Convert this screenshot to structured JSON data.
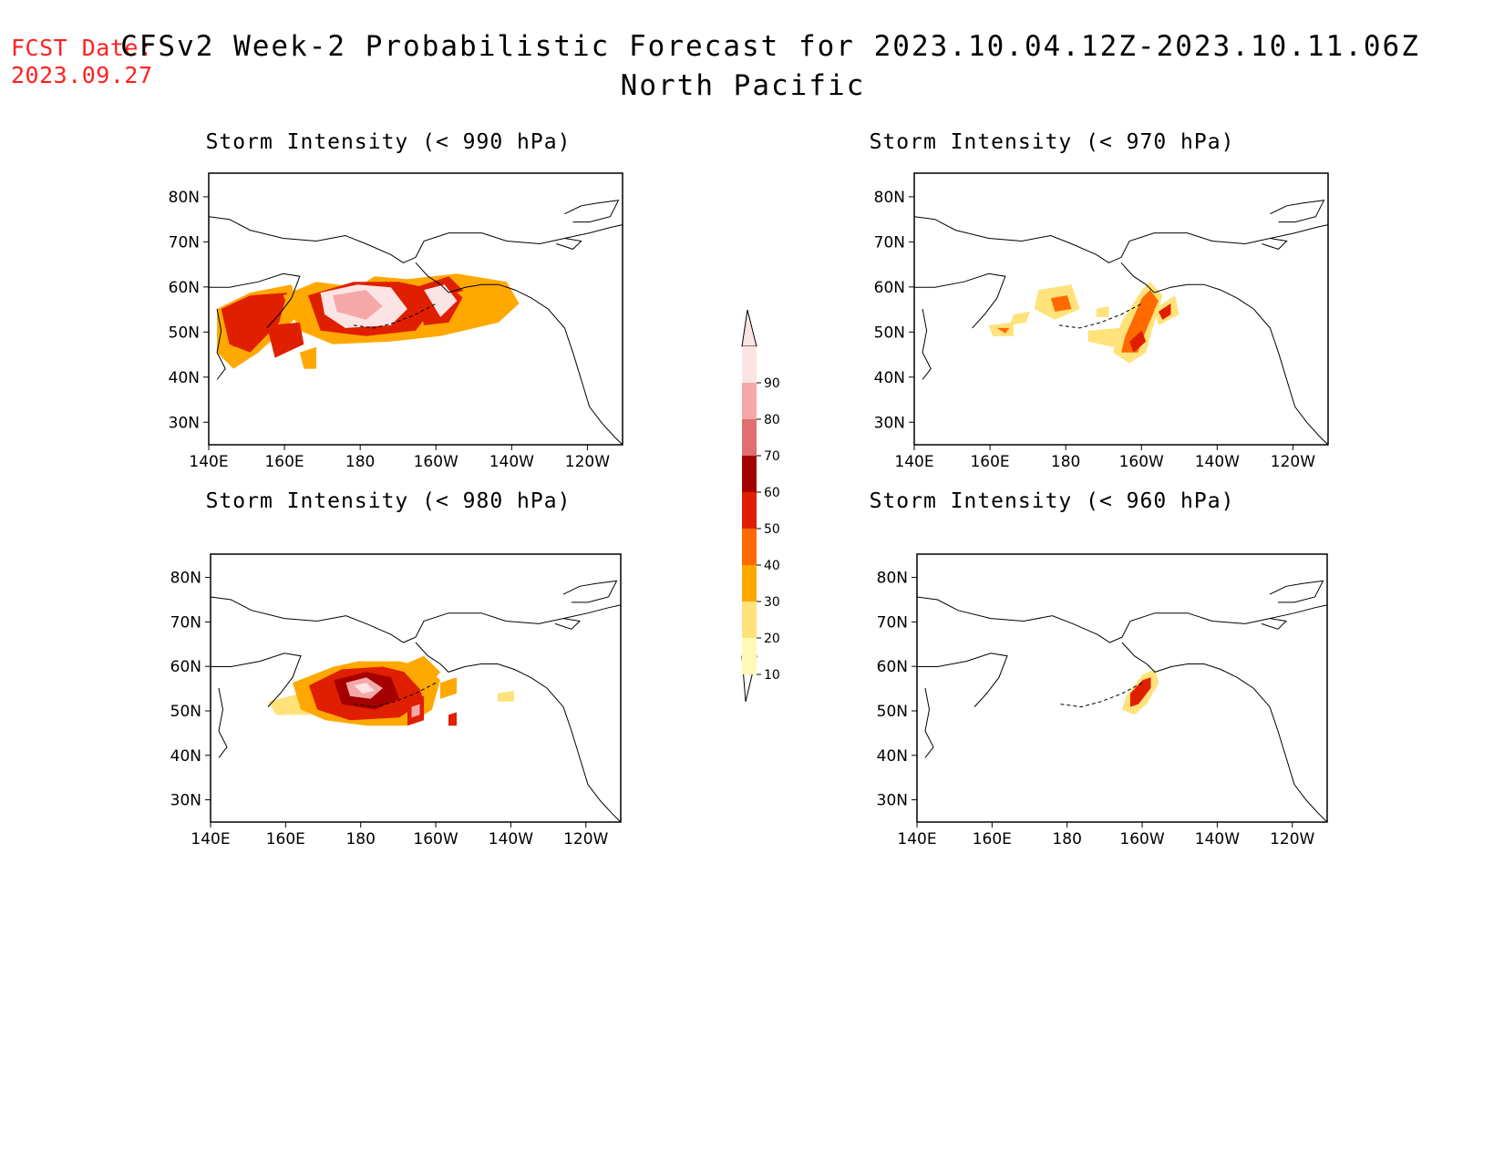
{
  "fcst": {
    "label": "FCST Date:",
    "date": "2023.09.27"
  },
  "title": {
    "line1": "CFSv2 Week-2 Probabilistic Forecast for 2023.10.04.12Z-2023.10.11.06Z",
    "line2": "North Pacific"
  },
  "axes": {
    "lat_labels": [
      "80N",
      "70N",
      "60N",
      "50N",
      "40N",
      "30N"
    ],
    "lon_labels": [
      "140E",
      "160E",
      "180",
      "160W",
      "140W",
      "120W"
    ]
  },
  "panels": [
    {
      "id": "p990",
      "title": "Storm Intensity (< 990 hPa)"
    },
    {
      "id": "p970",
      "title": "Storm Intensity (< 970 hPa)"
    },
    {
      "id": "p980",
      "title": "Storm Intensity (< 980 hPa)"
    },
    {
      "id": "p960",
      "title": "Storm Intensity (< 960 hPa)"
    }
  ],
  "colorbar": {
    "levels": [
      "10",
      "20",
      "30",
      "40",
      "50",
      "60",
      "70",
      "80",
      "90"
    ],
    "colors": [
      "#fff9b5",
      "#ffe27a",
      "#ffa800",
      "#ff6a00",
      "#e01e00",
      "#a50000",
      "#e07070",
      "#f4a8a8",
      "#fde4e4"
    ]
  }
}
